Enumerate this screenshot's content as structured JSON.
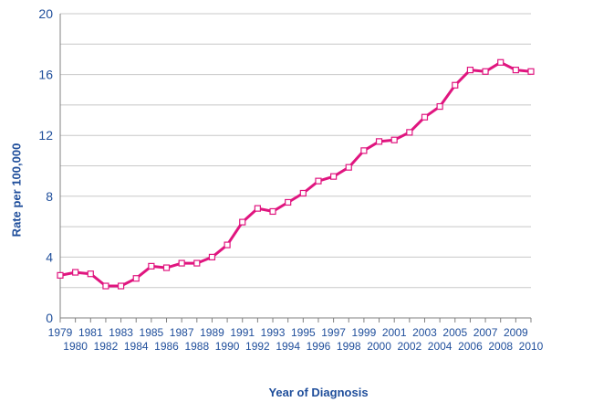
{
  "colors": {
    "series": "#E0157F",
    "axis_text": "#1F4E9B",
    "grid": "#C8C8C8",
    "axis_line": "#808080"
  },
  "chart_data": {
    "type": "line",
    "xlabel": "Year of Diagnosis",
    "ylabel": "Rate per 100,000",
    "ylim": [
      0,
      20
    ],
    "yticks": [
      0,
      4,
      8,
      12,
      16,
      20
    ],
    "grid": "horizontal gridlines every 2 units",
    "marker": "open square",
    "x": [
      1979,
      1980,
      1981,
      1982,
      1983,
      1984,
      1985,
      1986,
      1987,
      1988,
      1989,
      1990,
      1991,
      1992,
      1993,
      1994,
      1995,
      1996,
      1997,
      1998,
      1999,
      2000,
      2001,
      2002,
      2003,
      2004,
      2005,
      2006,
      2007,
      2008,
      2009,
      2010
    ],
    "series": [
      {
        "values": [
          2.8,
          3.0,
          2.9,
          2.1,
          2.1,
          2.6,
          3.4,
          3.3,
          3.6,
          3.6,
          4.0,
          4.8,
          6.3,
          7.2,
          7.0,
          7.6,
          8.2,
          9.0,
          9.3,
          9.9,
          11.0,
          11.6,
          11.7,
          12.2,
          13.2,
          13.9,
          15.3,
          16.3,
          16.2,
          16.8,
          16.3,
          16.2
        ]
      }
    ]
  }
}
